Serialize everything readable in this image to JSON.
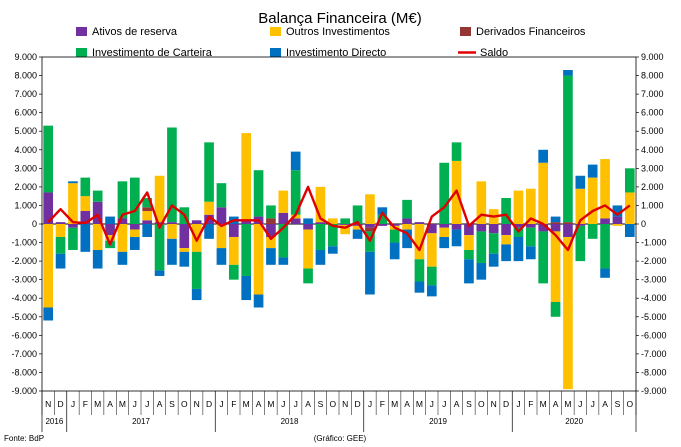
{
  "chart_data": {
    "type": "bar",
    "title": "Balança Financeira (M€)",
    "source": "Fonte: BdP",
    "credit": "(Gráfico: GEE)",
    "ylim": [
      -9000,
      9000
    ],
    "y_ticks": [
      "9.000",
      "8.000",
      "7.000",
      "6.000",
      "5.000",
      "4.000",
      "3.000",
      "2.000",
      "1.000",
      "0",
      "-1.000",
      "-2.000",
      "-3.000",
      "-4.000",
      "-5.000",
      "-6.000",
      "-7.000",
      "-8.000",
      "-9.000"
    ],
    "month_labels": [
      "N",
      "D",
      "J",
      "F",
      "M",
      "A",
      "M",
      "J",
      "J",
      "A",
      "S",
      "O",
      "N",
      "D",
      "J",
      "F",
      "M",
      "A",
      "M",
      "J",
      "J",
      "A",
      "S",
      "O",
      "N",
      "D",
      "J",
      "F",
      "M",
      "A",
      "M",
      "J",
      "J",
      "A",
      "S",
      "O",
      "N",
      "D",
      "J",
      "F",
      "M",
      "A",
      "M",
      "J",
      "J",
      "A",
      "S",
      "O"
    ],
    "year_labels": [
      {
        "label": "2016",
        "start": 0,
        "end": 1
      },
      {
        "label": "2017",
        "start": 2,
        "end": 13
      },
      {
        "label": "2018",
        "start": 14,
        "end": 25
      },
      {
        "label": "2019",
        "start": 26,
        "end": 37
      },
      {
        "label": "2020",
        "start": 38,
        "end": 47
      }
    ],
    "series": [
      {
        "name": "Ativos de reserva",
        "color": "#7030a0",
        "values": [
          1700,
          100,
          -200,
          700,
          1200,
          -600,
          300,
          -300,
          200,
          100,
          100,
          -1300,
          200,
          500,
          900,
          -700,
          200,
          400,
          -700,
          600,
          300,
          -300,
          100,
          0,
          -50,
          -100,
          -200,
          -100,
          -100,
          300,
          100,
          -500,
          -200,
          -300,
          -600,
          -400,
          -500,
          -600,
          -200,
          -200,
          -400,
          -400,
          -700,
          -100,
          0,
          300,
          400,
          0
        ]
      },
      {
        "name": "Outros Investimentos",
        "color": "#ffc000",
        "values": [
          -4500,
          -700,
          2200,
          800,
          -1400,
          -300,
          -1500,
          -400,
          500,
          2500,
          -800,
          -200,
          -1500,
          700,
          -1300,
          -1500,
          4700,
          -3800,
          -600,
          1200,
          200,
          -2100,
          1900,
          300,
          -500,
          -200,
          1600,
          0,
          -200,
          -300,
          -1900,
          -1800,
          -500,
          3400,
          -800,
          2300,
          800,
          -500,
          1800,
          1900,
          3300,
          -3800,
          -8200,
          1900,
          2500,
          3200,
          -100,
          1700
        ]
      },
      {
        "name": "Derivados Financeiros",
        "color": "#943634",
        "values": [
          0,
          0,
          0,
          0,
          0,
          0,
          0,
          0,
          200,
          0,
          0,
          0,
          0,
          0,
          0,
          0,
          0,
          0,
          300,
          0,
          0,
          0,
          0,
          0,
          0,
          0,
          -200,
          0,
          0,
          0,
          0,
          0,
          0,
          0,
          0,
          0,
          0,
          0,
          0,
          0,
          0,
          100,
          100,
          0,
          0,
          0,
          0,
          0
        ]
      },
      {
        "name": "Investimento de Carteira",
        "color": "#00b050",
        "values": [
          3600,
          -900,
          -1200,
          1000,
          600,
          -400,
          2000,
          2500,
          500,
          -2500,
          5100,
          900,
          -2000,
          3200,
          1300,
          -800,
          -2800,
          2500,
          700,
          -1800,
          2400,
          -800,
          -1400,
          -1200,
          300,
          1000,
          -1100,
          500,
          -700,
          1000,
          -1200,
          -1000,
          3300,
          1000,
          -500,
          -1700,
          -1100,
          1400,
          -500,
          -1000,
          -2800,
          -800,
          7900,
          -1900,
          -800,
          -2400,
          0,
          1300
        ]
      },
      {
        "name": "Investimento Directo",
        "color": "#0070c0",
        "values": [
          -700,
          -800,
          100,
          -1500,
          -1000,
          400,
          -700,
          -700,
          -700,
          -300,
          -1400,
          -800,
          -600,
          -800,
          -900,
          400,
          -1300,
          -700,
          -900,
          -400,
          1000,
          300,
          -800,
          -400,
          0,
          -500,
          -2300,
          400,
          -900,
          -1000,
          -600,
          -600,
          -600,
          -900,
          -1300,
          -900,
          -700,
          -900,
          -1300,
          -700,
          700,
          300,
          300,
          700,
          700,
          -500,
          600,
          -700
        ]
      }
    ],
    "saldo": {
      "name": "Saldo",
      "color": "#e00000",
      "values": [
        100,
        800,
        100,
        50,
        500,
        -1100,
        500,
        700,
        1700,
        -200,
        1000,
        500,
        -900,
        400,
        -100,
        200,
        200,
        200,
        -800,
        -200,
        500,
        2000,
        300,
        -100,
        -200,
        100,
        -900,
        600,
        -200,
        -500,
        -1400,
        400,
        900,
        1800,
        -100,
        500,
        400,
        500,
        -400,
        300,
        0,
        -600,
        -1400,
        200,
        700,
        1000,
        500,
        1000
      ]
    }
  }
}
